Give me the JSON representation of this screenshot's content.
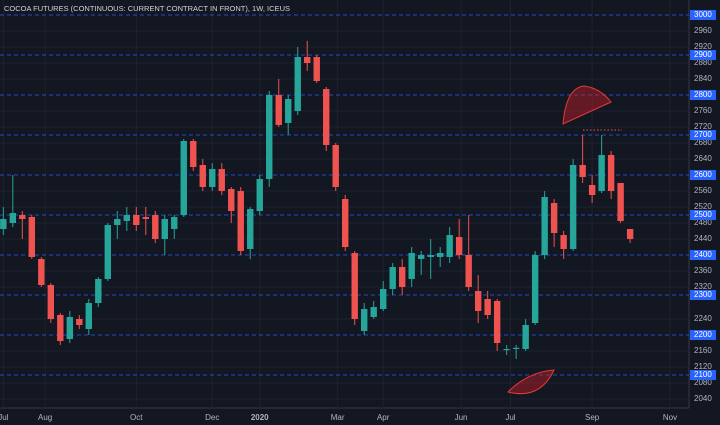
{
  "chart_data": {
    "type": "candlestick",
    "title": "COCOA FUTURES (CONTINUOUS: CURRENT CONTRACT IN FRONT), 1W, ICEUS",
    "up_color": "#26a69a",
    "down_color": "#ef5350",
    "price_line_color": "#2962ff",
    "ylim": [
      2017.5,
      3037.5
    ],
    "yticks": [
      2040,
      2080,
      2120,
      2160,
      2240,
      2320,
      2360,
      2440,
      2480,
      2520,
      2560,
      2640,
      2680,
      2720,
      2760,
      2840,
      2880,
      2920,
      2960
    ],
    "price_lines": [
      2100,
      2200,
      2300,
      2400,
      2500,
      2600,
      2700,
      2800,
      2900,
      3000
    ],
    "xlim": [
      -0.35,
      72.2
    ],
    "xticks": [
      {
        "value": 0,
        "label": "Jul"
      },
      {
        "value": 4.4,
        "label": "Aug"
      },
      {
        "value": 14,
        "label": "Oct"
      },
      {
        "value": 22,
        "label": "Dec"
      },
      {
        "value": 27,
        "label": "2020"
      },
      {
        "value": 35.2,
        "label": "Mar"
      },
      {
        "value": 40,
        "label": "Apr"
      },
      {
        "value": 48.2,
        "label": "Jun"
      },
      {
        "value": 53.4,
        "label": "Jul"
      },
      {
        "value": 62,
        "label": "Sep"
      },
      {
        "value": 70.2,
        "label": "Nov"
      }
    ],
    "open": [
      2465,
      2480,
      2500,
      2495,
      2390,
      2325,
      2250,
      2190,
      2240,
      2215,
      2280,
      2340,
      2475,
      2485,
      2500,
      2495,
      2500,
      2440,
      2465,
      2500,
      2685,
      2625,
      2570,
      2615,
      2565,
      2560,
      2415,
      2510,
      2590,
      2800,
      2730,
      2760,
      2895,
      2895,
      2815,
      2675,
      2540,
      2405,
      2210,
      2245,
      2265,
      2315,
      2370,
      2340,
      2390,
      2395,
      2395,
      2395,
      2445,
      2400,
      2310,
      2290,
      2285,
      2162,
      2165,
      2165,
      2230,
      2400,
      2530,
      2450,
      2415,
      2625,
      2575,
      2560,
      2650,
      2580,
      2465
    ],
    "high": [
      2520,
      2600,
      2510,
      2500,
      2395,
      2330,
      2255,
      2260,
      2250,
      2290,
      2345,
      2480,
      2510,
      2520,
      2520,
      2520,
      2510,
      2500,
      2500,
      2690,
      2690,
      2640,
      2630,
      2630,
      2570,
      2570,
      2520,
      2600,
      2810,
      2840,
      2800,
      2920,
      2935,
      2900,
      2820,
      2680,
      2550,
      2410,
      2280,
      2285,
      2335,
      2380,
      2390,
      2420,
      2410,
      2440,
      2420,
      2470,
      2490,
      2500,
      2350,
      2310,
      2290,
      2175,
      2175,
      2240,
      2410,
      2560,
      2540,
      2460,
      2640,
      2700,
      2600,
      2700,
      2660,
      2580,
      2465
    ],
    "low": [
      2450,
      2470,
      2440,
      2390,
      2320,
      2230,
      2175,
      2180,
      2215,
      2200,
      2270,
      2335,
      2440,
      2460,
      2460,
      2450,
      2430,
      2400,
      2440,
      2495,
      2610,
      2560,
      2560,
      2550,
      2480,
      2400,
      2390,
      2500,
      2570,
      2720,
      2700,
      2750,
      2860,
      2830,
      2660,
      2560,
      2410,
      2225,
      2200,
      2240,
      2260,
      2300,
      2300,
      2320,
      2350,
      2340,
      2370,
      2380,
      2390,
      2310,
      2230,
      2240,
      2160,
      2150,
      2140,
      2160,
      2225,
      2390,
      2420,
      2390,
      2410,
      2580,
      2530,
      2555,
      2540,
      2480,
      2430
    ],
    "close": [
      2490,
      2505,
      2490,
      2395,
      2325,
      2240,
      2185,
      2245,
      2225,
      2280,
      2340,
      2475,
      2490,
      2500,
      2475,
      2490,
      2440,
      2490,
      2495,
      2685,
      2620,
      2570,
      2615,
      2560,
      2510,
      2410,
      2515,
      2590,
      2800,
      2725,
      2790,
      2895,
      2880,
      2835,
      2675,
      2570,
      2420,
      2240,
      2265,
      2270,
      2315,
      2370,
      2320,
      2405,
      2400,
      2400,
      2405,
      2450,
      2400,
      2320,
      2260,
      2250,
      2180,
      2165,
      2168,
      2225,
      2400,
      2545,
      2455,
      2415,
      2625,
      2595,
      2550,
      2650,
      2560,
      2485,
      2440
    ]
  }
}
